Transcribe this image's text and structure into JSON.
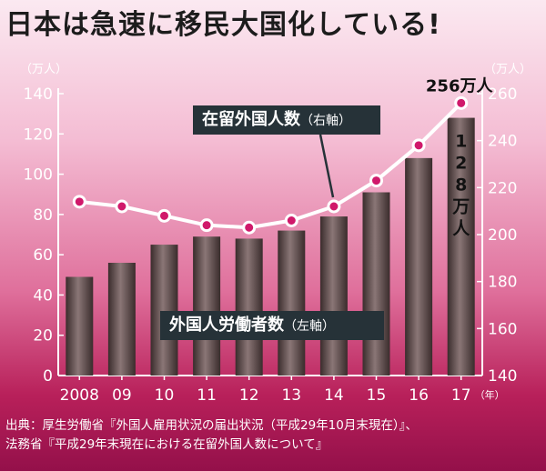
{
  "title": "日本は急速に移民大国化している!",
  "chart_data": {
    "type": "bar+line",
    "categories": [
      "2008",
      "09",
      "10",
      "11",
      "12",
      "13",
      "14",
      "15",
      "16",
      "17"
    ],
    "x_unit": "（年）",
    "bar_series": {
      "name": "外国人労働者数（左軸）",
      "axis": "left",
      "unit": "（万人）",
      "values": [
        49,
        56,
        65,
        69,
        68,
        72,
        79,
        91,
        108,
        128
      ],
      "ylim": [
        0,
        140
      ],
      "yticks": [
        0,
        20,
        40,
        60,
        80,
        100,
        120,
        140
      ]
    },
    "line_series": {
      "name": "在留外国人数（右軸）",
      "axis": "right",
      "unit": "（万人）",
      "values": [
        214,
        212,
        208,
        204,
        203,
        206,
        212,
        223,
        238,
        256
      ],
      "ylim": [
        140,
        260
      ],
      "yticks": [
        140,
        160,
        180,
        200,
        220,
        240,
        260
      ]
    },
    "annotations": {
      "line_last": "256万人",
      "bar_last": "128万人"
    },
    "colors": {
      "bar": "#6b5959",
      "line": "#ffffff",
      "marker": "#d0196b",
      "axis": "#ffffff",
      "label_box": "#263238"
    }
  },
  "labels": {
    "right_series_main": "在留外国人数",
    "right_series_sub": "（右軸）",
    "left_series_main": "外国人労働者数",
    "left_series_sub": "（左軸）"
  },
  "source": {
    "line1": "出典：厚生労働省『外国人雇用状況の届出状況（平成29年10月末現在）』、",
    "line2": "法務省『平成29年末現在における在留外国人数について』"
  }
}
